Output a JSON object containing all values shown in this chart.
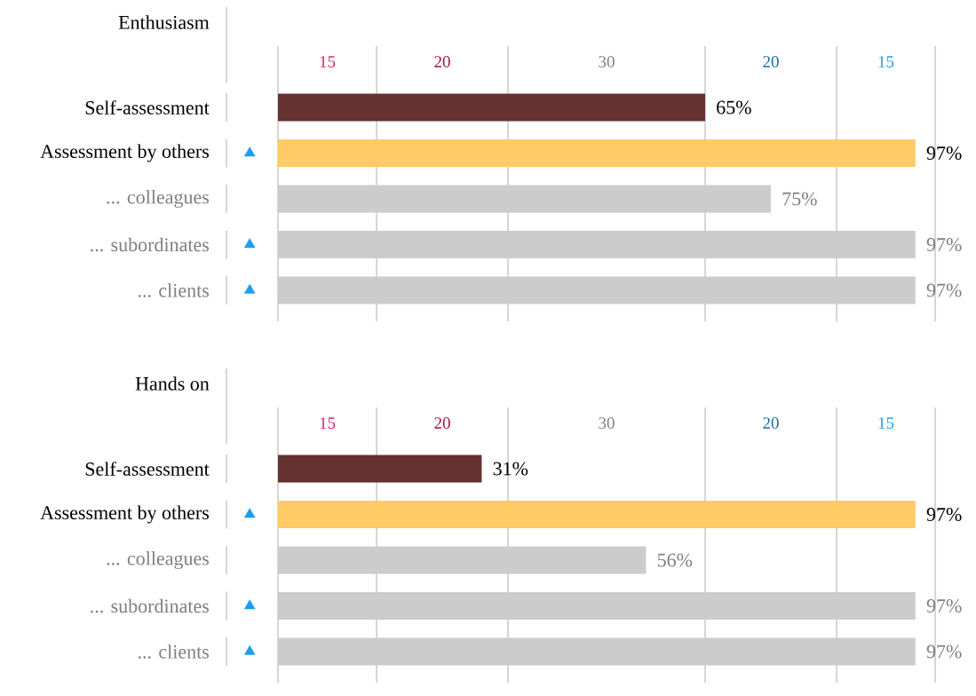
{
  "chart_data": [
    {
      "type": "bar",
      "orientation": "horizontal",
      "title": "Enthusiasm",
      "categories": [
        "Self-assessment",
        "Assessment by others",
        "... colleagues",
        "... subordinates",
        "... clients"
      ],
      "series": [
        {
          "values": [
            65,
            97,
            75,
            97,
            97
          ],
          "value_labels": [
            "65%",
            "97%",
            "75%",
            "97%",
            "97%"
          ],
          "colors": [
            "#653230",
            "#fecb66",
            "#cccccc",
            "#cccccc",
            "#cccccc"
          ]
        },
        {
          "type": "scatter",
          "marker": "triangle",
          "color": "#1c9ef0",
          "values": [
            null,
            -4.3,
            null,
            -4.3,
            -4.3
          ]
        }
      ],
      "xticks": [
        {
          "value": 0,
          "label": null
        },
        {
          "value": 15,
          "label": null
        },
        {
          "value": 35,
          "label": null
        },
        {
          "value": 65,
          "label": null
        },
        {
          "value": 85,
          "label": null
        },
        {
          "value": 100,
          "label": null
        }
      ],
      "annotations": [
        "15",
        "20",
        "30",
        "20",
        "15"
      ],
      "grid": "x",
      "tick_labels": "y"
    },
    {
      "type": "bar",
      "orientation": "horizontal",
      "title": "Hands on",
      "categories": [
        "Self-assessment",
        "Assessment by others",
        "... colleagues",
        "... subordinates",
        "... clients"
      ],
      "series": [
        {
          "values": [
            31,
            97,
            56,
            97,
            97
          ],
          "value_labels": [
            "31%",
            "97%",
            "56%",
            "97%",
            "97%"
          ],
          "colors": [
            "#653230",
            "#fecb66",
            "#cccccc",
            "#cccccc",
            "#cccccc"
          ]
        },
        {
          "type": "scatter",
          "marker": "triangle",
          "color": "#1c9ef0",
          "values": [
            null,
            -4.3,
            null,
            -4.3,
            -4.3
          ]
        }
      ],
      "xticks": [
        {
          "value": 0,
          "label": null
        },
        {
          "value": 15,
          "label": null
        },
        {
          "value": 35,
          "label": null
        },
        {
          "value": 65,
          "label": null
        },
        {
          "value": 85,
          "label": null
        },
        {
          "value": 100,
          "label": null
        }
      ],
      "annotations": [
        "15",
        "20",
        "30",
        "20",
        "15"
      ],
      "grid": "x",
      "tick_labels": "y"
    }
  ]
}
